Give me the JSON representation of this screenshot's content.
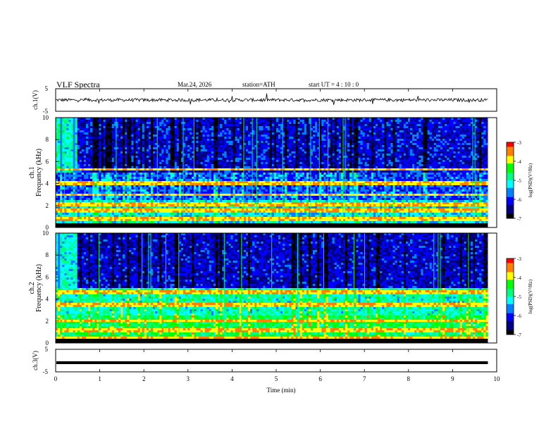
{
  "header": {
    "title": "VLF  Spectra",
    "date": "Mar.24, 2026",
    "station": "station=ATH",
    "start": "start  UT  =   4  : 10 : 0"
  },
  "chart_data": [
    {
      "type": "line",
      "panel": "ch1-waveform",
      "ylabel": "ch.1(V)",
      "ylim": [
        -5,
        5
      ],
      "y_ticks": [
        "5",
        "-5"
      ],
      "xlim": [
        0,
        10
      ],
      "baseline": 0,
      "grid": false
    },
    {
      "type": "heatmap",
      "panel": "ch1-spectrogram",
      "ylabel_channel": "ch.1",
      "ylabel": "Frequency  (kHz)",
      "ylim": [
        0,
        10
      ],
      "y_ticks": [
        "0",
        "2",
        "4",
        "6",
        "8",
        "10"
      ],
      "xlim": [
        0,
        9.8
      ],
      "colorbar": {
        "label": "log(PSD)(V²/Hz)",
        "range": [
          -7,
          -3
        ],
        "ticks": [
          "-3",
          "-4",
          "-5",
          "-6",
          "-7"
        ]
      },
      "bands_khz": [
        0.3,
        0.8,
        1.5,
        2.1,
        3.0,
        4.0,
        5.3
      ]
    },
    {
      "type": "heatmap",
      "panel": "ch2-spectrogram",
      "ylabel_channel": "ch.2",
      "ylabel": "Frequency  (kHz)",
      "ylim": [
        0,
        10
      ],
      "y_ticks": [
        "0",
        "2",
        "4",
        "6",
        "8",
        "10"
      ],
      "xlim": [
        0,
        9.8
      ],
      "colorbar": {
        "label": "log(PSD)(V²/Hz)",
        "range": [
          -7,
          -3
        ],
        "ticks": [
          "-3",
          "-4",
          "-5",
          "-6",
          "-7"
        ]
      },
      "bands_khz": [
        0.5,
        1.2,
        2.0,
        3.5,
        4.6
      ]
    },
    {
      "type": "line",
      "panel": "ch3-waveform",
      "ylabel": "ch.3(V)",
      "ylim": [
        -5,
        5
      ],
      "y_ticks": [
        "5",
        "-5"
      ],
      "xlim": [
        0,
        10
      ],
      "baseline": 0,
      "x_ticks": [
        "0",
        "1",
        "2",
        "3",
        "4",
        "5",
        "6",
        "7",
        "8",
        "9",
        "10"
      ],
      "xlabel": "Time  (min)",
      "grid": false
    }
  ],
  "colors": {
    "scale": [
      "#000000",
      "#000080",
      "#0000ff",
      "#0080ff",
      "#00ffff",
      "#00ff80",
      "#00ff00",
      "#ffff00",
      "#ff8000",
      "#ff0000",
      "#ffffff"
    ]
  }
}
